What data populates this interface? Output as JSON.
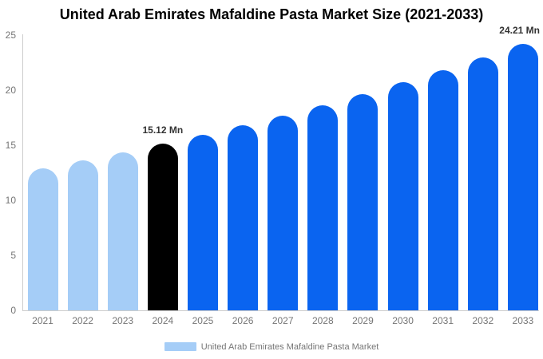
{
  "title": "United Arab Emirates Mafaldine Pasta Market Size (2021-2033)",
  "legend": {
    "label": "United Arab Emirates Mafaldine Pasta Market",
    "swatch_color": "#a5cdf7"
  },
  "colors": {
    "historical_bar": "#a5cdf7",
    "base_year_bar": "#000000",
    "forecast_bar": "#0a64f0",
    "axis_line": "#cccccc",
    "tick_text": "#757575",
    "annotation_text": "#333333",
    "title_text": "#000000",
    "background": "#ffffff"
  },
  "chart_data": {
    "type": "bar",
    "title": "United Arab Emirates Mafaldine Pasta Market Size (2021-2033)",
    "unit": "Mn",
    "categories": [
      "2021",
      "2022",
      "2023",
      "2024",
      "2025",
      "2026",
      "2027",
      "2028",
      "2029",
      "2030",
      "2031",
      "2032",
      "2033"
    ],
    "values": [
      12.92,
      13.62,
      14.35,
      15.12,
      15.93,
      16.79,
      17.69,
      18.64,
      19.64,
      20.7,
      21.81,
      22.98,
      24.21
    ],
    "bar_colors": [
      "#a5cdf7",
      "#a5cdf7",
      "#a5cdf7",
      "#000000",
      "#0a64f0",
      "#0a64f0",
      "#0a64f0",
      "#0a64f0",
      "#0a64f0",
      "#0a64f0",
      "#0a64f0",
      "#0a64f0",
      "#0a64f0"
    ],
    "annotations": [
      {
        "category": "2024",
        "text": "15.12 Mn"
      },
      {
        "category": "2033",
        "text": "24.21 Mn"
      }
    ],
    "xlabel": "",
    "ylabel": "",
    "ylim": [
      0,
      25
    ],
    "yticks": [
      0,
      5,
      10,
      15,
      20,
      25
    ],
    "grid": false,
    "legend_position": "bottom",
    "legend_entries": [
      "United Arab Emirates Mafaldine Pasta Market"
    ]
  }
}
